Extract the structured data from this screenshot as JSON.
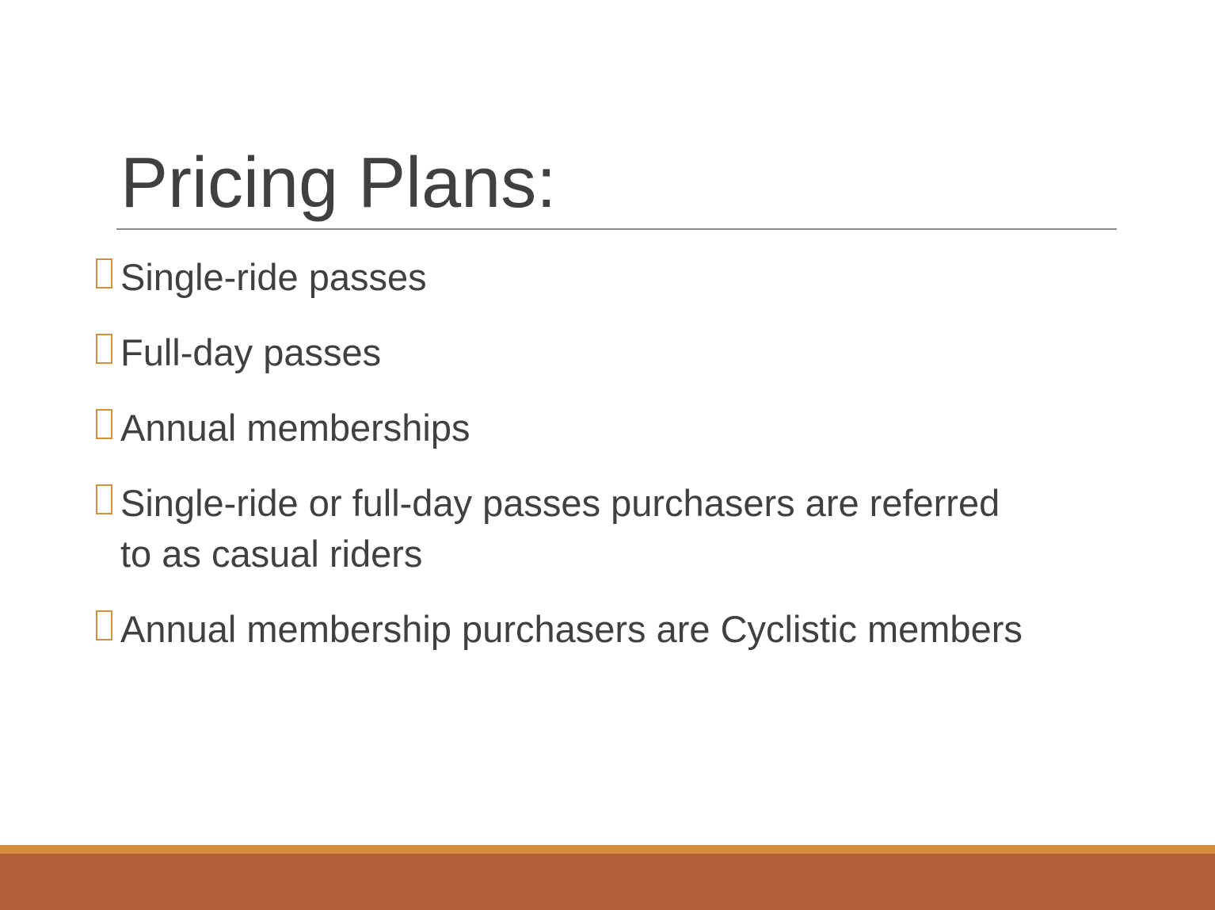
{
  "slide": {
    "title": "Pricing Plans:",
    "bullets": [
      "Single-ride passes",
      "Full-day passes",
      "Annual memberships",
      "Single-ride or full-day passes purchasers are referred to as casual riders",
      "Annual membership purchasers are Cyclistic members"
    ]
  },
  "theme": {
    "text_color": "#404040",
    "bullet_color": "#d38f3c",
    "accent_line_color": "#d48e3c",
    "footer_band_color": "#b05f38",
    "rule_color": "#8a8a8a"
  }
}
